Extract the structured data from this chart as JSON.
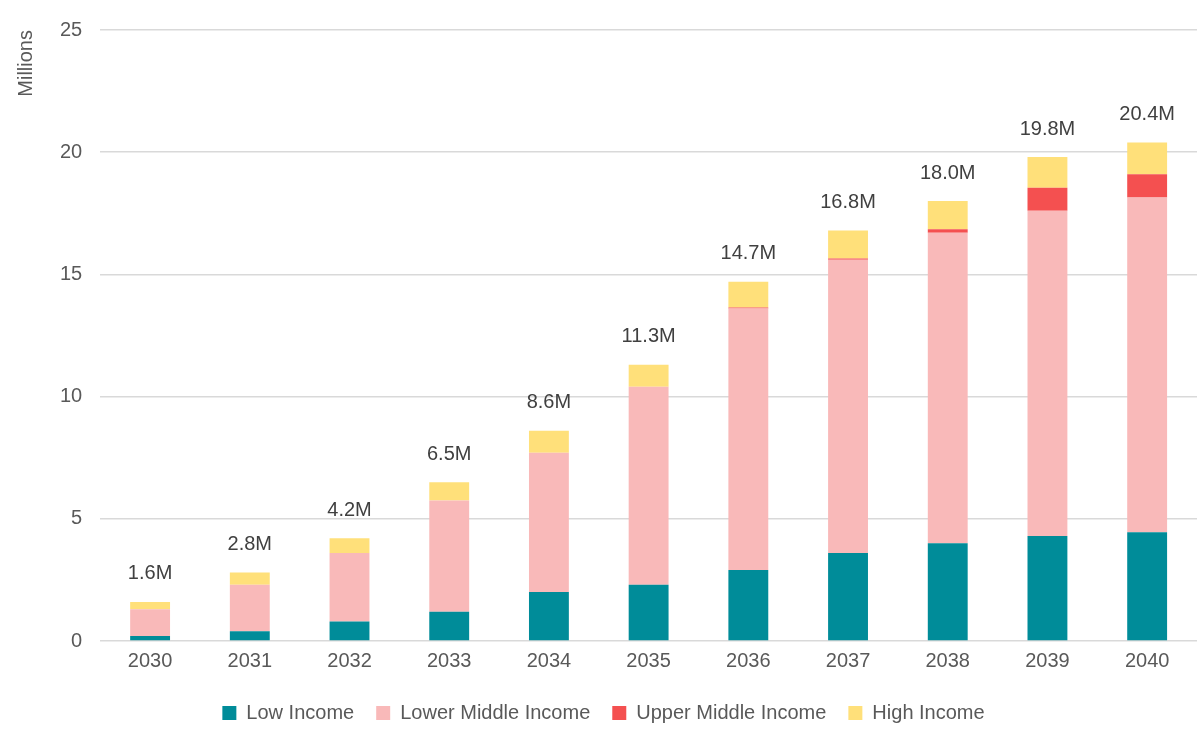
{
  "chart_data": {
    "type": "bar",
    "stacked": true,
    "ylabel": "Millions",
    "categories": [
      "2030",
      "2031",
      "2032",
      "2033",
      "2034",
      "2035",
      "2036",
      "2037",
      "2038",
      "2039",
      "2040"
    ],
    "series": [
      {
        "name": "Low Income",
        "color": "#008c99",
        "values": [
          0.2,
          0.4,
          0.8,
          1.2,
          2.0,
          2.3,
          2.9,
          3.6,
          4.0,
          4.3,
          4.45
        ]
      },
      {
        "name": "Lower Middle Income",
        "color": "#f9b9b9",
        "values": [
          1.1,
          1.9,
          2.8,
          4.55,
          5.7,
          8.1,
          10.7,
          12.0,
          12.7,
          13.3,
          13.7
        ]
      },
      {
        "name": "Upper Middle Income",
        "color": "#f45050",
        "values": [
          0,
          0,
          0,
          0,
          0,
          0,
          0.05,
          0.05,
          0.15,
          0.95,
          0.95
        ]
      },
      {
        "name": "High Income",
        "color": "#ffe07a",
        "values": [
          0.3,
          0.5,
          0.6,
          0.75,
          0.9,
          0.9,
          1.05,
          1.15,
          1.15,
          1.25,
          1.3
        ]
      }
    ],
    "totals": [
      "1.6M",
      "2.8M",
      "4.2M",
      "6.5M",
      "8.6M",
      "11.3M",
      "14.7M",
      "16.8M",
      "18.0M",
      "19.8M",
      "20.4M"
    ],
    "ylim": [
      0,
      25
    ],
    "yticks": [
      0,
      5,
      10,
      15,
      20,
      25
    ],
    "grid": "y",
    "legend": "bottom"
  }
}
